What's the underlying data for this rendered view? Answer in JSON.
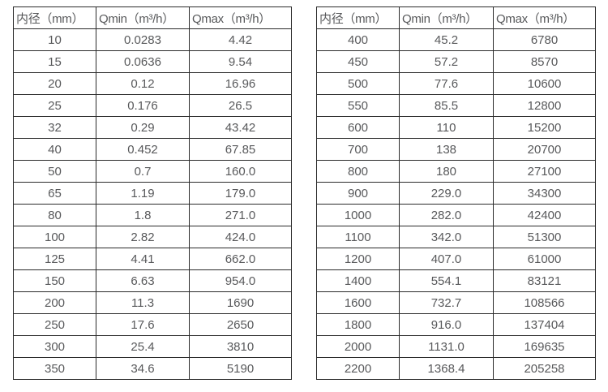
{
  "page": {
    "background_color": "#ffffff",
    "border_color": "#2b2b2b",
    "text_color": "#58595b"
  },
  "tables": [
    {
      "name": "flow-rate-table-small-diameters",
      "headers": [
        "内径（mm）",
        "Qmin（m³/h）",
        "Qmax（m³/h）"
      ],
      "rows": [
        [
          "10",
          "0.0283",
          "4.42"
        ],
        [
          "15",
          "0.0636",
          "9.54"
        ],
        [
          "20",
          "0.12",
          "16.96"
        ],
        [
          "25",
          "0.176",
          "26.5"
        ],
        [
          "32",
          "0.29",
          "43.42"
        ],
        [
          "40",
          "0.452",
          "67.85"
        ],
        [
          "50",
          "0.7",
          "160.0"
        ],
        [
          "65",
          "1.19",
          "179.0"
        ],
        [
          "80",
          "1.8",
          "271.0"
        ],
        [
          "100",
          "2.82",
          "424.0"
        ],
        [
          "125",
          "4.41",
          "662.0"
        ],
        [
          "150",
          "6.63",
          "954.0"
        ],
        [
          "200",
          "11.3",
          "1690"
        ],
        [
          "250",
          "17.6",
          "2650"
        ],
        [
          "300",
          "25.4",
          "3810"
        ],
        [
          "350",
          "34.6",
          "5190"
        ]
      ]
    },
    {
      "name": "flow-rate-table-large-diameters",
      "headers": [
        "内径（mm）",
        "Qmin（m³/h）",
        "Qmax（m³/h）"
      ],
      "rows": [
        [
          "400",
          "45.2",
          "6780"
        ],
        [
          "450",
          "57.2",
          "8570"
        ],
        [
          "500",
          "77.6",
          "10600"
        ],
        [
          "550",
          "85.5",
          "12800"
        ],
        [
          "600",
          "110",
          "15200"
        ],
        [
          "700",
          "138",
          "20700"
        ],
        [
          "800",
          "180",
          "27100"
        ],
        [
          "900",
          "229.0",
          "34300"
        ],
        [
          "1000",
          "282.0",
          "42400"
        ],
        [
          "1100",
          "342.0",
          "51300"
        ],
        [
          "1200",
          "407.0",
          "61000"
        ],
        [
          "1400",
          "554.1",
          "83121"
        ],
        [
          "1600",
          "732.7",
          "108566"
        ],
        [
          "1800",
          "916.0",
          "137404"
        ],
        [
          "2000",
          "1131.0",
          "169635"
        ],
        [
          "2200",
          "1368.4",
          "205258"
        ]
      ]
    }
  ]
}
